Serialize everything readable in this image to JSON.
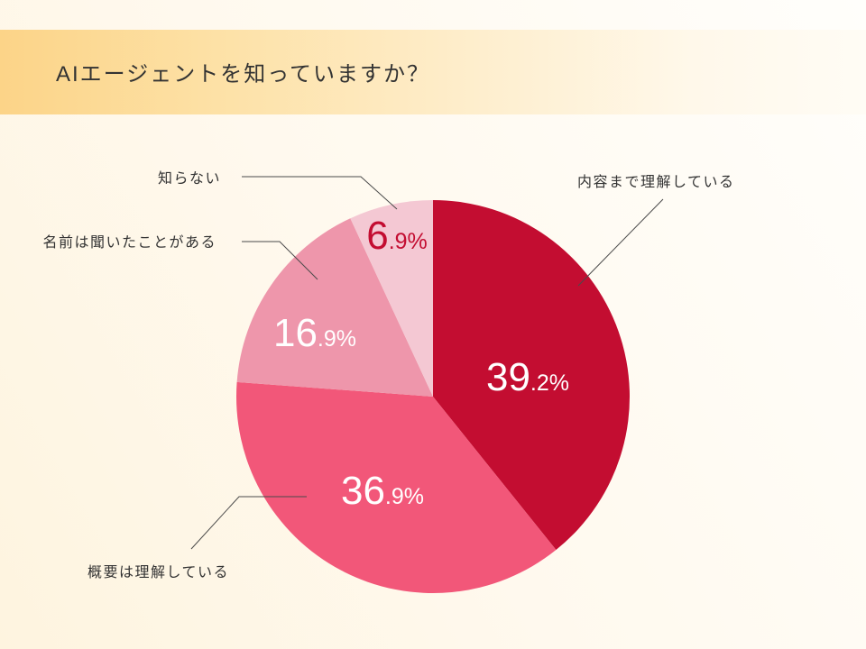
{
  "title": "AIエージェントを知っていますか？",
  "colors": {
    "banner": "#FCD488",
    "title_text": "#333333"
  },
  "chart_data": {
    "type": "pie",
    "categories": [
      "内容まで理解している",
      "概要は理解している",
      "名前は聞いたことがある",
      "知らない"
    ],
    "values": [
      39.2,
      36.9,
      16.9,
      6.9
    ],
    "data_labels": [
      "39.2%",
      "36.9%",
      "16.9%",
      "6.9%"
    ],
    "colors": [
      "#C30D31",
      "#F25779",
      "#EE96AB",
      "#F4C8D3"
    ],
    "label_colors": [
      "#FFFFFF",
      "#FFFFFF",
      "#FFFFFF",
      "#C30D31"
    ]
  }
}
